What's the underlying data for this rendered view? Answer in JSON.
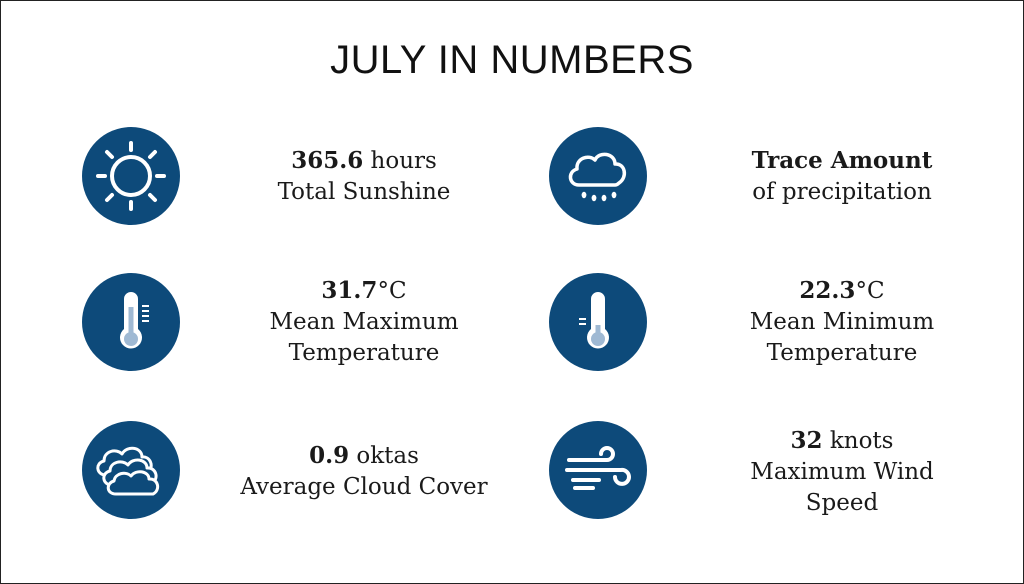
{
  "title": "JULY IN NUMBERS",
  "colors": {
    "icon_bg": "#0d4a7a",
    "icon_fg": "#ffffff"
  },
  "stats": [
    {
      "icon": "sun-icon",
      "value": "365.6",
      "unit": " hours",
      "line2": "Total Sunshine",
      "line3": ""
    },
    {
      "icon": "rain-cloud-icon",
      "value": "Trace Amount",
      "unit": "",
      "line2": "of precipitation",
      "line3": ""
    },
    {
      "icon": "thermometer-high-icon",
      "value": "31.7",
      "unit": "°C",
      "line2": "Mean Maximum",
      "line3": "Temperature"
    },
    {
      "icon": "thermometer-low-icon",
      "value": "22.3",
      "unit": "°C",
      "line2": "Mean Minimum",
      "line3": "Temperature"
    },
    {
      "icon": "clouds-icon",
      "value": "0.9",
      "unit": " oktas",
      "line2": "Average Cloud Cover",
      "line3": ""
    },
    {
      "icon": "wind-icon",
      "value": "32",
      "unit": " knots",
      "line2": "Maximum Wind",
      "line3": "Speed"
    }
  ]
}
